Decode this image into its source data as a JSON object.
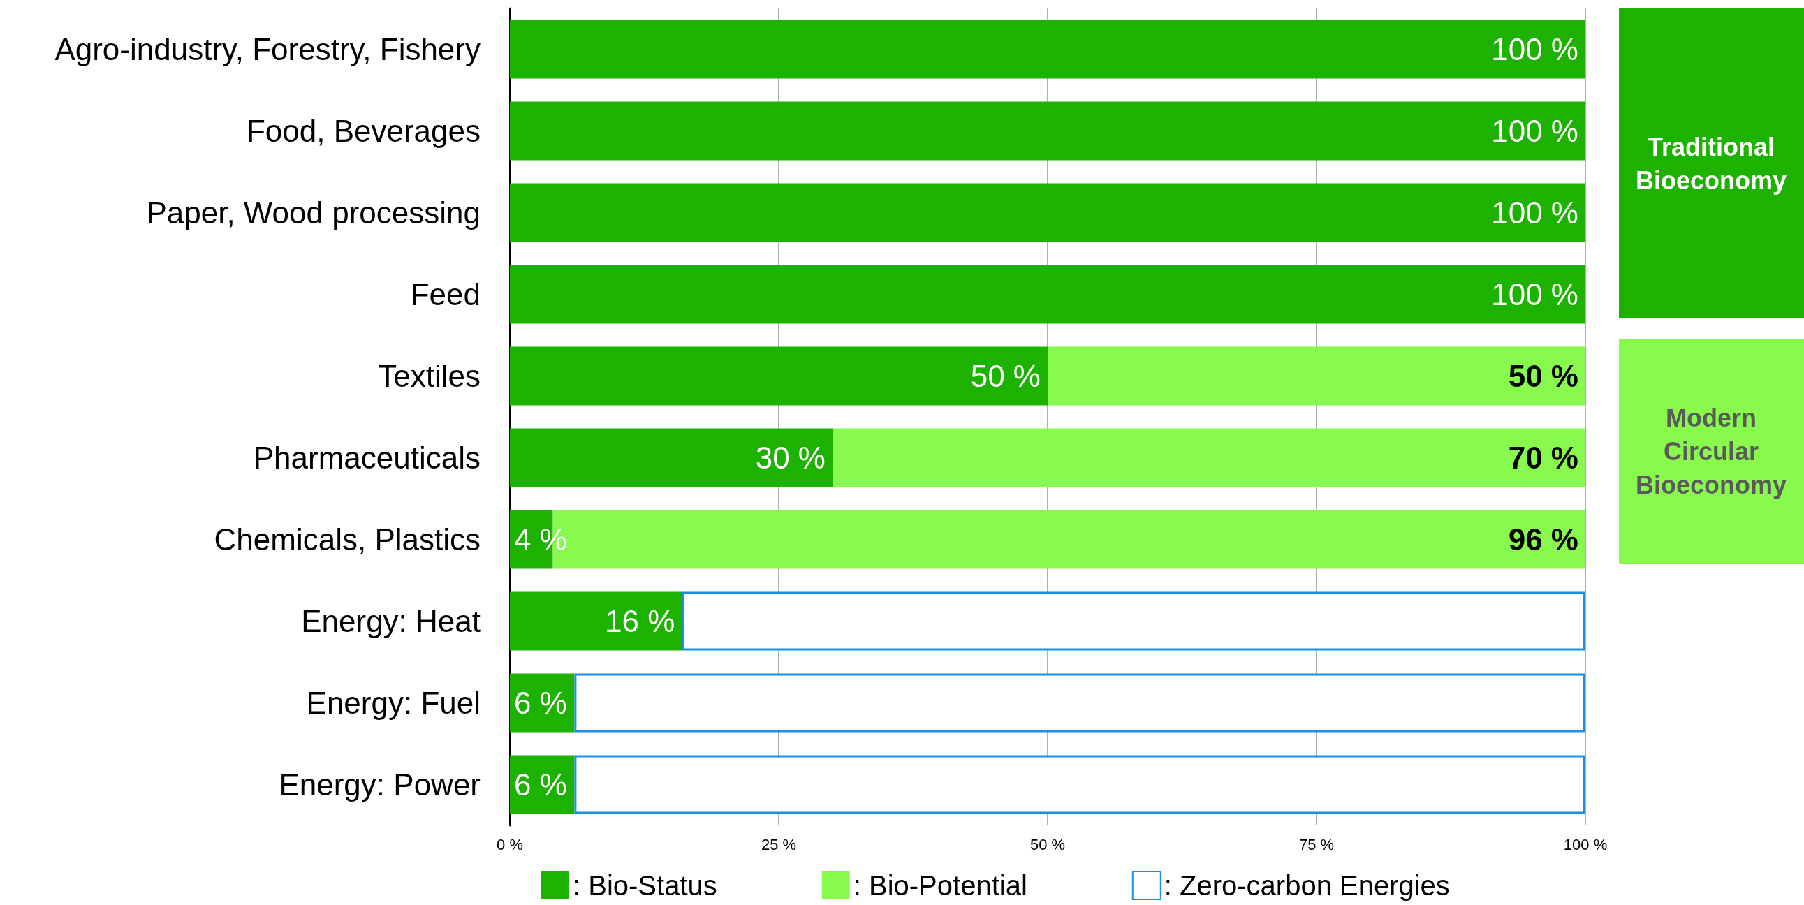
{
  "chart_data": {
    "type": "bar",
    "orientation": "horizontal",
    "stacked": true,
    "categories": [
      "Agro-industry, Forestry, Fishery",
      "Food, Beverages",
      "Paper, Wood processing",
      "Feed",
      "Textiles",
      "Pharmaceuticals",
      "Chemicals, Plastics",
      "Energy: Heat",
      "Energy: Fuel",
      "Energy: Power"
    ],
    "series": [
      {
        "name": ": Bio-Status",
        "color": "#1db100",
        "values": [
          100,
          100,
          100,
          100,
          50,
          30,
          4,
          16,
          6,
          6
        ],
        "value_labels": [
          "100 %",
          "100 %",
          "100 %",
          "100 %",
          "50 %",
          "30 %",
          "4 %",
          "16 %",
          "6 %",
          "6 %"
        ]
      },
      {
        "name": ": Bio-Potential",
        "color": "#88fa4e",
        "values": [
          null,
          null,
          null,
          null,
          50,
          70,
          96,
          null,
          null,
          null
        ],
        "value_labels": [
          null,
          null,
          null,
          null,
          "50 %",
          "70 %",
          "96 %",
          null,
          null,
          null
        ]
      },
      {
        "name": ": Zero-carbon Energies",
        "color": "#1a8fe3",
        "line_style": "solid",
        "values": [
          null,
          null,
          null,
          null,
          null,
          null,
          null,
          84,
          94,
          94
        ]
      }
    ],
    "xlim": [
      0,
      100
    ],
    "xticks": [
      {
        "value": 0,
        "label": "0 %"
      },
      {
        "value": 25,
        "label": "25 %"
      },
      {
        "value": 50,
        "label": "50 %"
      },
      {
        "value": 75,
        "label": "75 %"
      },
      {
        "value": 100,
        "label": "100 %"
      }
    ],
    "grid": "x",
    "legend": "bottom",
    "annotations": [
      "Traditional\nBioeconomy",
      "Modern\nCircular\nBioeconomy"
    ]
  }
}
